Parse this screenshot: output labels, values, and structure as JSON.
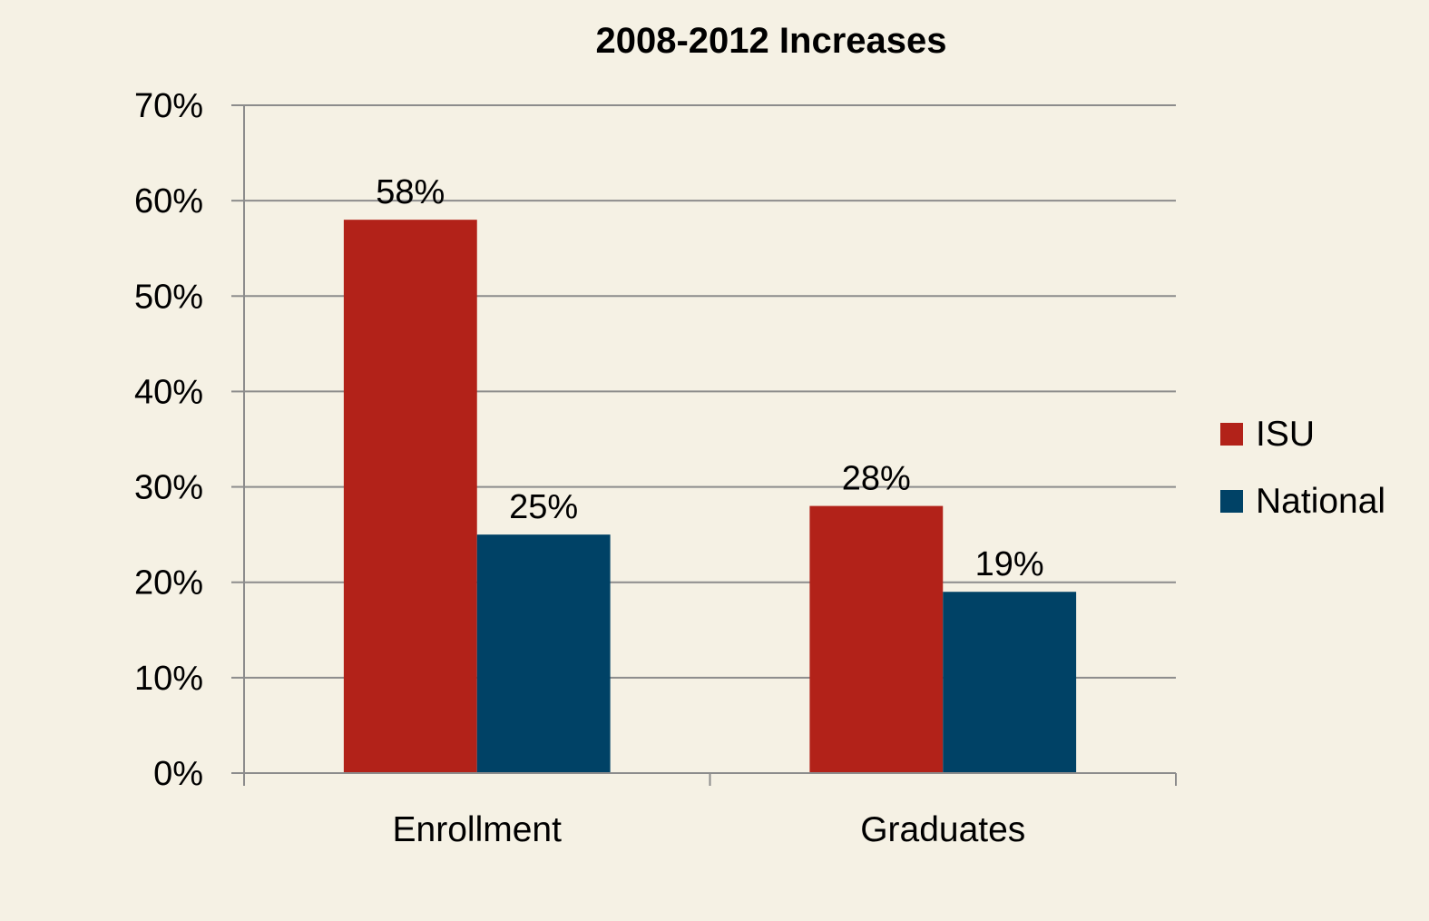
{
  "colors": {
    "background": "#F5F1E4",
    "grid": "#8C8C8C",
    "axis": "#8C8C8C"
  },
  "chart_data": {
    "type": "bar",
    "title": "2008-2012 Increases",
    "xlabel": "",
    "ylabel": "",
    "categories": [
      "Enrollment",
      "Graduates"
    ],
    "series": [
      {
        "name": "ISU",
        "values": [
          58,
          28
        ],
        "labels": [
          "58%",
          "28%"
        ],
        "color": "#B22219"
      },
      {
        "name": "National",
        "values": [
          25,
          19
        ],
        "labels": [
          "25%",
          "19%"
        ],
        "color": "#004266"
      }
    ],
    "ylim": [
      0,
      70
    ],
    "yticks": [
      0,
      10,
      20,
      30,
      40,
      50,
      60,
      70
    ],
    "ytick_labels": [
      "0%",
      "10%",
      "20%",
      "30%",
      "40%",
      "50%",
      "60%",
      "70%"
    ],
    "grid": true,
    "legend_position": "right"
  }
}
